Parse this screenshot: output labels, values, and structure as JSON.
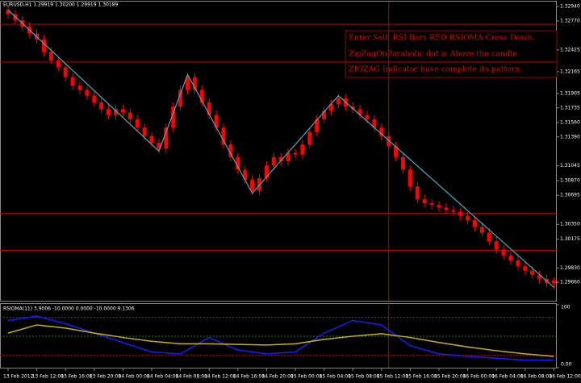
{
  "chart_data": [
    {
      "type": "candlestick",
      "title": "EURUSD,H1 1.29919 1.30200 1.29919 1.30189",
      "color": "#ff0000",
      "wick_color": "#ff0000",
      "categories": [
        "13 Feb 2012",
        null,
        null,
        null,
        "13 Feb 12:00",
        null,
        null,
        null,
        "13 Feb 16:00",
        null,
        null,
        null,
        "13 Feb 20:00",
        null,
        null,
        null,
        "14 Feb 00:00",
        null,
        null,
        null,
        "14 Feb 04:00",
        null,
        null,
        null,
        "14 Feb 08:00",
        null,
        null,
        null,
        "14 Feb 12:00",
        null,
        null,
        null,
        "14 Feb 16:00",
        null,
        null,
        null,
        "14 Feb 20:00",
        null,
        null,
        null,
        "15 Feb 00:00",
        null,
        null,
        null,
        "15 Feb 04:00",
        null,
        null,
        null,
        "15 Feb 08:00",
        null,
        null,
        null,
        "15 Feb 12:00",
        null,
        null,
        null,
        "15 Feb 16:00",
        null,
        null,
        null,
        "15 Feb 20:00",
        null,
        null,
        null,
        "16 Feb 00:00",
        null,
        null,
        null,
        "16 Feb 04:00",
        null,
        null,
        null,
        "16 Feb 08:00",
        null,
        null,
        null,
        "16 Feb 12:00"
      ],
      "ohlc": [
        [
          1.329,
          1.3295,
          1.328,
          1.3285
        ],
        [
          1.3285,
          1.329,
          1.3273,
          1.3278
        ],
        [
          1.3278,
          1.3283,
          1.3265,
          1.327
        ],
        [
          1.327,
          1.3275,
          1.3257,
          1.3262
        ],
        [
          1.3262,
          1.3267,
          1.325,
          1.3255
        ],
        [
          1.3255,
          1.326,
          1.3235,
          1.324
        ],
        [
          1.324,
          1.3245,
          1.3225,
          1.323
        ],
        [
          1.323,
          1.3235,
          1.3217,
          1.3222
        ],
        [
          1.3222,
          1.3227,
          1.3205,
          1.321
        ],
        [
          1.321,
          1.3215,
          1.3195,
          1.32
        ],
        [
          1.32,
          1.3205,
          1.319,
          1.3195
        ],
        [
          1.3195,
          1.32,
          1.3183,
          1.3188
        ],
        [
          1.3188,
          1.3193,
          1.3175,
          1.318
        ],
        [
          1.318,
          1.3185,
          1.3167,
          1.3172
        ],
        [
          1.3172,
          1.3177,
          1.316,
          1.3165
        ],
        [
          1.3165,
          1.3177,
          1.316,
          1.3172
        ],
        [
          1.3172,
          1.3177,
          1.3163,
          1.3168
        ],
        [
          1.3168,
          1.3173,
          1.3155,
          1.316
        ],
        [
          1.316,
          1.3165,
          1.3145,
          1.315
        ],
        [
          1.315,
          1.3155,
          1.3135,
          1.314
        ],
        [
          1.314,
          1.3145,
          1.3127,
          1.3132
        ],
        [
          1.3132,
          1.3137,
          1.312,
          1.3125
        ],
        [
          1.3125,
          1.3155,
          1.312,
          1.315
        ],
        [
          1.315,
          1.318,
          1.3145,
          1.3175
        ],
        [
          1.3175,
          1.32,
          1.317,
          1.3195
        ],
        [
          1.3195,
          1.3215,
          1.319,
          1.321
        ],
        [
          1.321,
          1.3215,
          1.319,
          1.3195
        ],
        [
          1.3195,
          1.32,
          1.3175,
          1.318
        ],
        [
          1.318,
          1.3185,
          1.316,
          1.3165
        ],
        [
          1.3165,
          1.317,
          1.3145,
          1.315
        ],
        [
          1.315,
          1.3155,
          1.3125,
          1.313
        ],
        [
          1.313,
          1.3135,
          1.311,
          1.3115
        ],
        [
          1.3115,
          1.312,
          1.3095,
          1.31
        ],
        [
          1.31,
          1.3105,
          1.3083,
          1.3088
        ],
        [
          1.3088,
          1.3093,
          1.307,
          1.3075
        ],
        [
          1.3075,
          1.3095,
          1.307,
          1.309
        ],
        [
          1.309,
          1.311,
          1.3085,
          1.3105
        ],
        [
          1.3105,
          1.312,
          1.31,
          1.3115
        ],
        [
          1.3115,
          1.312,
          1.3105,
          1.311
        ],
        [
          1.311,
          1.3125,
          1.3105,
          1.312
        ],
        [
          1.312,
          1.3125,
          1.3113,
          1.3118
        ],
        [
          1.3118,
          1.3135,
          1.3113,
          1.313
        ],
        [
          1.313,
          1.315,
          1.3125,
          1.3145
        ],
        [
          1.3145,
          1.3165,
          1.314,
          1.316
        ],
        [
          1.316,
          1.3175,
          1.3155,
          1.317
        ],
        [
          1.317,
          1.3183,
          1.3165,
          1.3178
        ],
        [
          1.3178,
          1.319,
          1.3173,
          1.3185
        ],
        [
          1.3185,
          1.319,
          1.317,
          1.3175
        ],
        [
          1.3175,
          1.318,
          1.3167,
          1.3172
        ],
        [
          1.3172,
          1.3177,
          1.316,
          1.3165
        ],
        [
          1.3165,
          1.317,
          1.3155,
          1.316
        ],
        [
          1.316,
          1.3165,
          1.3145,
          1.315
        ],
        [
          1.315,
          1.3155,
          1.3135,
          1.314
        ],
        [
          1.314,
          1.3145,
          1.3123,
          1.3128
        ],
        [
          1.3128,
          1.3133,
          1.311,
          1.3115
        ],
        [
          1.3115,
          1.312,
          1.3095,
          1.31
        ],
        [
          1.31,
          1.3105,
          1.3075,
          1.308
        ],
        [
          1.308,
          1.3085,
          1.306,
          1.3065
        ],
        [
          1.3065,
          1.307,
          1.3055,
          1.306
        ],
        [
          1.306,
          1.3065,
          1.3053,
          1.3058
        ],
        [
          1.3058,
          1.3063,
          1.305,
          1.3055
        ],
        [
          1.3055,
          1.306,
          1.3047,
          1.3052
        ],
        [
          1.3052,
          1.3057,
          1.3045,
          1.305
        ],
        [
          1.305,
          1.3055,
          1.304,
          1.3045
        ],
        [
          1.3045,
          1.305,
          1.3035,
          1.304
        ],
        [
          1.304,
          1.3045,
          1.3027,
          1.3032
        ],
        [
          1.3032,
          1.3037,
          1.302,
          1.3025
        ],
        [
          1.3025,
          1.303,
          1.301,
          1.3015
        ],
        [
          1.3015,
          1.302,
          1.3,
          1.3005
        ],
        [
          1.3005,
          1.301,
          1.2993,
          1.2998
        ],
        [
          1.2998,
          1.3003,
          1.2987,
          1.2992
        ],
        [
          1.2992,
          1.2997,
          1.298,
          1.2985
        ],
        [
          1.2985,
          1.299,
          1.2975,
          1.298
        ],
        [
          1.298,
          1.2985,
          1.297,
          1.2975
        ],
        [
          1.2975,
          1.298,
          1.2965,
          1.297
        ],
        [
          1.297,
          1.2975,
          1.296,
          1.2965
        ],
        [
          1.2965,
          1.2972,
          1.2958,
          1.2968
        ]
      ],
      "zigzag": {
        "color": "#3fb0c0",
        "x": [
          0,
          21,
          25,
          34,
          46,
          76
        ],
        "values": [
          1.329,
          1.3122,
          1.3213,
          1.3072,
          1.3188,
          1.296
        ]
      },
      "hlines": {
        "color": "#c00000",
        "values": [
          1.3273,
          1.3228,
          1.3048,
          1.3004
        ]
      },
      "vlines": {
        "color": "#c00000",
        "x": [
          53
        ]
      },
      "annotations": [
        "Enter Sell: RSI Bars RED RSIOMA Cross Down.",
        "ZigZagOnParabolic dot is Above the candle",
        "ZIGZAG Indicator have complete its pattern."
      ],
      "ylim": [
        1.2945,
        1.3298
      ],
      "yticks": [
        {
          "value": 1.3294,
          "label": "1.32940"
        },
        {
          "value": 1.3277,
          "label": "1.32770"
        },
        {
          "value": 1.32425,
          "label": "1.32425"
        },
        {
          "value": 1.32165,
          "label": "1.32165"
        },
        {
          "value": 1.31905,
          "label": "1.31905"
        },
        {
          "value": 1.31735,
          "label": "1.31735"
        },
        {
          "value": 1.3156,
          "label": "1.31560"
        },
        {
          "value": 1.3139,
          "label": "1.31390"
        },
        {
          "value": 1.31045,
          "label": "1.31045"
        },
        {
          "value": 1.3087,
          "label": "1.30870"
        },
        {
          "value": 1.30695,
          "label": "1.30695"
        },
        {
          "value": 1.3035,
          "label": "1.30350"
        },
        {
          "value": 1.30175,
          "label": "1.30175"
        },
        {
          "value": 1.2983,
          "label": "1.29830"
        },
        {
          "value": 1.2966,
          "label": "1.29660"
        }
      ]
    },
    {
      "type": "line",
      "title": "RSIOMA(11) 3.9006 -10.0000 0.0000 -10.0000 9.1306",
      "x": [
        0,
        4,
        8,
        12,
        16,
        20,
        24,
        28,
        32,
        36,
        40,
        44,
        48,
        52,
        56,
        60,
        64,
        68,
        72,
        76
      ],
      "series": [
        {
          "color": "#1a1aff",
          "values": [
            75,
            82,
            70,
            55,
            40,
            25,
            22,
            48,
            28,
            22,
            25,
            55,
            75,
            68,
            35,
            22,
            18,
            15,
            12,
            12
          ]
        },
        {
          "color": "#c8b400",
          "values": [
            55,
            68,
            63,
            55,
            48,
            42,
            38,
            38,
            37,
            36,
            38,
            45,
            50,
            54,
            48,
            40,
            33,
            27,
            22,
            18
          ]
        }
      ],
      "levels": {
        "values": [
          80,
          50,
          20
        ],
        "colors": [
          "#3030ff",
          "#208020",
          "#c00000"
        ]
      },
      "ylim": [
        0,
        100
      ],
      "yticks": [
        100,
        {
          "value": 0,
          "label": "0.00"
        }
      ]
    }
  ]
}
